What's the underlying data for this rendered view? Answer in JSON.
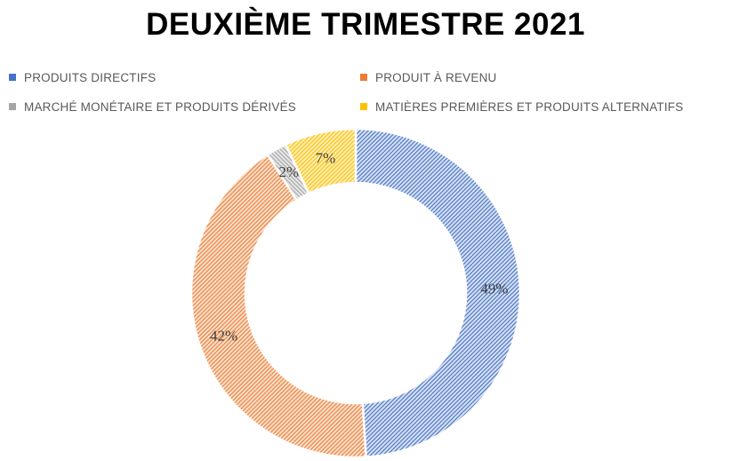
{
  "title": "DEUXIÈME TRIMESTRE 2021",
  "chart_data": {
    "type": "pie",
    "subtype": "donut",
    "title": "DEUXIÈME TRIMESTRE 2021",
    "legend_position": "top",
    "start_angle_deg": 0,
    "direction": "clockwise",
    "units": "percent",
    "series": [
      {
        "label": "PRODUITS DIRECTIFS",
        "value": 49,
        "data_label": "49%",
        "color": "#4472C4",
        "tint": "#d9e2f4",
        "hatch": "/"
      },
      {
        "label": "PRODUIT À REVENU",
        "value": 42,
        "data_label": "42%",
        "color": "#ED7D31",
        "tint": "#fbe1d0",
        "hatch": "/"
      },
      {
        "label": "MARCHÉ MONÉTAIRE ET PRODUITS DÉRIVÉS",
        "value": 2,
        "data_label": "2%",
        "color": "#A5A5A5",
        "tint": "#e7e7e7",
        "hatch": "\\"
      },
      {
        "label": "MATIÈRES PREMIÈRES ET PRODUITS ALTERNATIFS",
        "value": 7,
        "data_label": "7%",
        "color": "#FFC000",
        "tint": "#feeeb9",
        "hatch": "/"
      }
    ],
    "slice_border_color": "#ffffff",
    "label_color": "#3f3f3f",
    "legend_text_color": "#595959"
  }
}
